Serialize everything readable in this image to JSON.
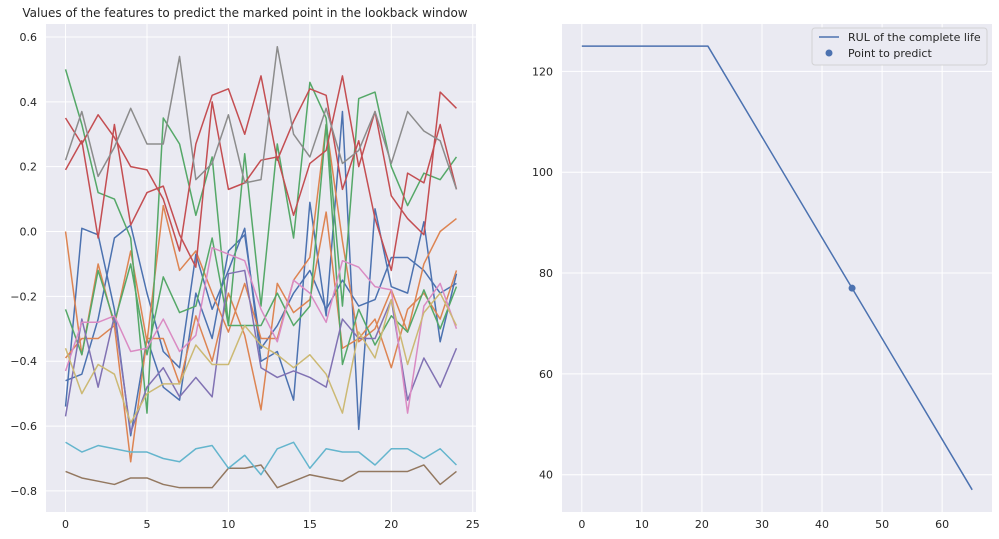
{
  "chart_data": [
    {
      "type": "line",
      "title": "Values of the features to predict the marked point in the lookback window",
      "xlabel": "",
      "ylabel": "",
      "xlim": [
        -1.2,
        25.2
      ],
      "ylim": [
        -0.865,
        0.64
      ],
      "xticks": [
        0,
        5,
        10,
        15,
        20,
        25
      ],
      "yticks": [
        -0.8,
        -0.6,
        -0.4,
        -0.2,
        0.0,
        0.2,
        0.4,
        0.6
      ],
      "ytick_labels": [
        "−0.8",
        "−0.6",
        "−0.4",
        "−0.2",
        "0.0",
        "0.2",
        "0.4",
        "0.6"
      ],
      "grid": true,
      "x": [
        0,
        1,
        2,
        3,
        4,
        5,
        6,
        7,
        8,
        9,
        10,
        11,
        12,
        13,
        14,
        15,
        16,
        17,
        18,
        19,
        20,
        21,
        22,
        23,
        24
      ],
      "series": [
        {
          "color": "#4c72b0",
          "values": [
            -0.46,
            -0.44,
            -0.27,
            -0.02,
            0.02,
            -0.19,
            -0.37,
            -0.42,
            -0.07,
            -0.24,
            -0.12,
            0.01,
            -0.4,
            -0.37,
            -0.52,
            0.09,
            -0.26,
            0.37,
            -0.61,
            0.07,
            -0.17,
            -0.19,
            0.03,
            -0.34,
            -0.13
          ]
        },
        {
          "color": "#4c72b0",
          "values": [
            -0.54,
            0.01,
            -0.01,
            -0.24,
            -0.63,
            -0.33,
            -0.48,
            -0.52,
            -0.19,
            -0.33,
            -0.06,
            -0.01,
            -0.36,
            -0.29,
            -0.19,
            -0.12,
            -0.24,
            -0.15,
            -0.23,
            -0.21,
            -0.08,
            -0.08,
            -0.12,
            -0.19,
            -0.16
          ]
        },
        {
          "color": "#dd8452",
          "values": [
            0.0,
            -0.38,
            -0.1,
            -0.29,
            -0.71,
            -0.33,
            -0.33,
            -0.47,
            -0.26,
            -0.4,
            -0.19,
            -0.32,
            -0.55,
            -0.16,
            -0.25,
            -0.21,
            0.06,
            -0.36,
            -0.33,
            -0.27,
            -0.42,
            -0.24,
            -0.19,
            -0.27,
            -0.12
          ]
        },
        {
          "color": "#dd8452",
          "values": [
            -0.39,
            -0.33,
            -0.33,
            -0.29,
            -0.06,
            -0.34,
            0.08,
            -0.12,
            -0.06,
            -0.19,
            -0.31,
            -0.16,
            -0.33,
            -0.33,
            -0.15,
            -0.08,
            0.33,
            -0.03,
            -0.34,
            -0.3,
            -0.18,
            -0.31,
            -0.1,
            0.0,
            0.04
          ]
        },
        {
          "color": "#55a868",
          "values": [
            0.5,
            0.33,
            0.12,
            0.1,
            -0.02,
            -0.56,
            0.35,
            0.27,
            0.05,
            0.23,
            -0.29,
            0.24,
            -0.23,
            0.27,
            -0.02,
            0.46,
            0.35,
            -0.23,
            0.41,
            0.43,
            0.2,
            0.08,
            0.18,
            0.16,
            0.23
          ]
        },
        {
          "color": "#55a868",
          "values": [
            -0.24,
            -0.38,
            -0.12,
            -0.28,
            -0.1,
            -0.38,
            -0.14,
            -0.25,
            -0.23,
            -0.02,
            -0.29,
            -0.29,
            -0.29,
            -0.19,
            -0.29,
            -0.23,
            0.33,
            -0.41,
            -0.24,
            -0.35,
            -0.26,
            -0.31,
            -0.18,
            -0.3,
            -0.17
          ]
        },
        {
          "color": "#c44e52",
          "values": [
            0.35,
            0.27,
            0.36,
            0.29,
            0.2,
            0.19,
            0.1,
            -0.06,
            0.27,
            0.42,
            0.44,
            0.3,
            0.48,
            0.22,
            0.34,
            0.44,
            0.42,
            0.13,
            0.28,
            0.04,
            -0.12,
            0.18,
            0.15,
            0.33,
            0.13
          ]
        },
        {
          "color": "#c44e52",
          "values": [
            0.19,
            0.28,
            -0.02,
            0.33,
            0.02,
            0.12,
            0.14,
            -0.01,
            -0.11,
            0.4,
            0.13,
            0.15,
            0.22,
            0.23,
            0.05,
            0.21,
            0.25,
            0.48,
            0.2,
            0.37,
            0.11,
            0.04,
            -0.01,
            0.43,
            0.38
          ]
        },
        {
          "color": "#8172b3",
          "values": [
            -0.57,
            -0.27,
            -0.48,
            -0.26,
            -0.62,
            -0.48,
            -0.42,
            -0.51,
            -0.45,
            -0.51,
            -0.13,
            -0.12,
            -0.42,
            -0.45,
            -0.43,
            -0.45,
            -0.48,
            -0.27,
            -0.33,
            -0.33,
            -0.21,
            -0.52,
            -0.39,
            -0.48,
            -0.36
          ]
        },
        {
          "color": "#937860",
          "values": [
            -0.74,
            -0.76,
            -0.77,
            -0.78,
            -0.76,
            -0.76,
            -0.78,
            -0.79,
            -0.79,
            -0.79,
            -0.73,
            -0.73,
            -0.72,
            -0.79,
            -0.77,
            -0.75,
            -0.76,
            -0.77,
            -0.74,
            -0.74,
            -0.74,
            -0.74,
            -0.72,
            -0.78,
            -0.74
          ]
        },
        {
          "color": "#da8bc3",
          "values": [
            -0.43,
            -0.28,
            -0.28,
            -0.26,
            -0.37,
            -0.36,
            -0.27,
            -0.37,
            -0.32,
            -0.05,
            -0.07,
            -0.09,
            -0.24,
            -0.34,
            -0.15,
            -0.19,
            -0.28,
            -0.09,
            -0.11,
            -0.17,
            -0.18,
            -0.56,
            -0.23,
            -0.16,
            -0.3
          ]
        },
        {
          "color": "#8c8c8c",
          "values": [
            0.22,
            0.37,
            0.17,
            0.26,
            0.38,
            0.27,
            0.27,
            0.54,
            0.16,
            0.21,
            0.36,
            0.15,
            0.16,
            0.57,
            0.3,
            0.23,
            0.38,
            0.21,
            0.25,
            0.37,
            0.21,
            0.37,
            0.31,
            0.28,
            0.13
          ]
        },
        {
          "color": "#ccb974",
          "values": [
            -0.36,
            -0.5,
            -0.41,
            -0.44,
            -0.59,
            -0.5,
            -0.47,
            -0.47,
            -0.35,
            -0.41,
            -0.41,
            -0.29,
            -0.35,
            -0.38,
            -0.42,
            -0.38,
            -0.44,
            -0.56,
            -0.31,
            -0.39,
            -0.21,
            -0.41,
            -0.25,
            -0.19,
            -0.29
          ]
        },
        {
          "color": "#64b5cd",
          "values": [
            -0.65,
            -0.68,
            -0.66,
            -0.67,
            -0.68,
            -0.68,
            -0.7,
            -0.71,
            -0.67,
            -0.66,
            -0.73,
            -0.69,
            -0.75,
            -0.67,
            -0.65,
            -0.73,
            -0.67,
            -0.68,
            -0.68,
            -0.72,
            -0.67,
            -0.67,
            -0.7,
            -0.67,
            -0.72
          ]
        }
      ]
    },
    {
      "type": "line",
      "title": "",
      "xlabel": "",
      "ylabel": "",
      "xlim": [
        -3.3,
        68.3
      ],
      "ylim": [
        32.6,
        129.4
      ],
      "xticks": [
        0,
        10,
        20,
        30,
        40,
        50,
        60
      ],
      "yticks": [
        40,
        60,
        80,
        100,
        120
      ],
      "grid": true,
      "legend": {
        "placement": "top-right",
        "entries": [
          "RUL of the complete life",
          "Point to predict"
        ]
      },
      "series": [
        {
          "name": "RUL of the complete life",
          "color": "#4c72b0",
          "points": [
            [
              0,
              125
            ],
            [
              21,
              125
            ],
            [
              65,
              37
            ]
          ]
        }
      ],
      "scatter": [
        {
          "name": "Point to predict",
          "color": "#4c72b0",
          "points": [
            [
              45,
              77
            ]
          ]
        }
      ]
    }
  ]
}
